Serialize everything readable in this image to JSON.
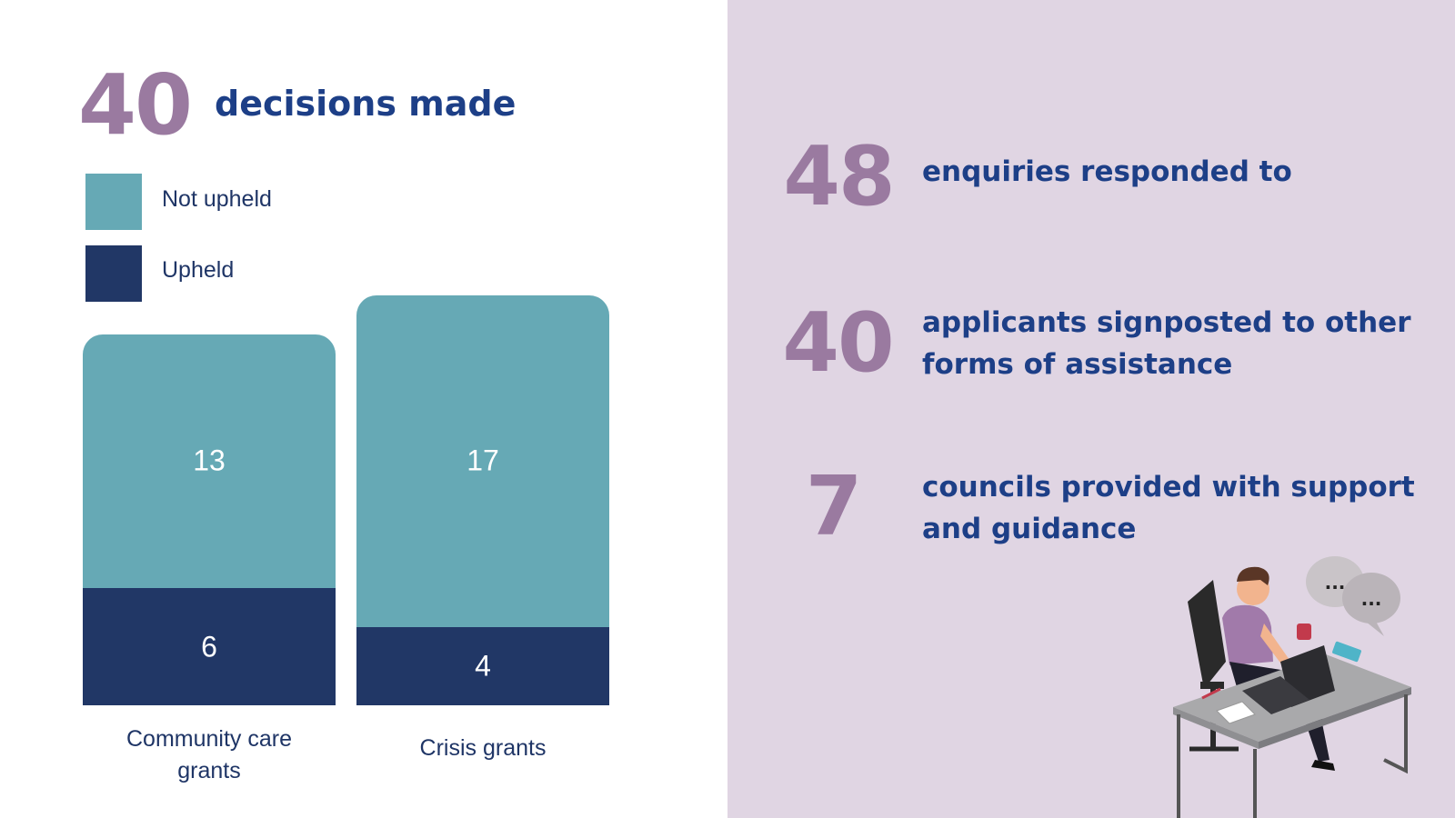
{
  "headline": {
    "value": "40",
    "label": "decisions made"
  },
  "colors": {
    "not_upheld": "#66a9b5",
    "upheld": "#213766",
    "accent_number": "#9a7aa0",
    "headline_text": "#1d3f87",
    "right_background": "#e0d5e3"
  },
  "chart_data": {
    "type": "bar",
    "stacked": true,
    "categories": [
      "Community care grants",
      "Crisis grants"
    ],
    "series": [
      {
        "name": "Upheld",
        "values": [
          6,
          4
        ]
      },
      {
        "name": "Not upheld",
        "values": [
          13,
          17
        ]
      }
    ],
    "title": "",
    "xlabel": "",
    "ylabel": "",
    "legend": {
      "entries": [
        "Not upheld",
        "Upheld"
      ],
      "placement": "top-left"
    },
    "grid": false,
    "axes_visible": false
  },
  "stats": [
    {
      "value": "48",
      "label": "enquiries responded to"
    },
    {
      "value": "40",
      "label": "applicants signposted to other forms of assistance"
    },
    {
      "value": "7",
      "label": "councils provided with support and guidance"
    }
  ],
  "illustration": {
    "icon": "person-at-laptop-desk-icon",
    "speech_bubbles": [
      "...",
      "..."
    ]
  }
}
